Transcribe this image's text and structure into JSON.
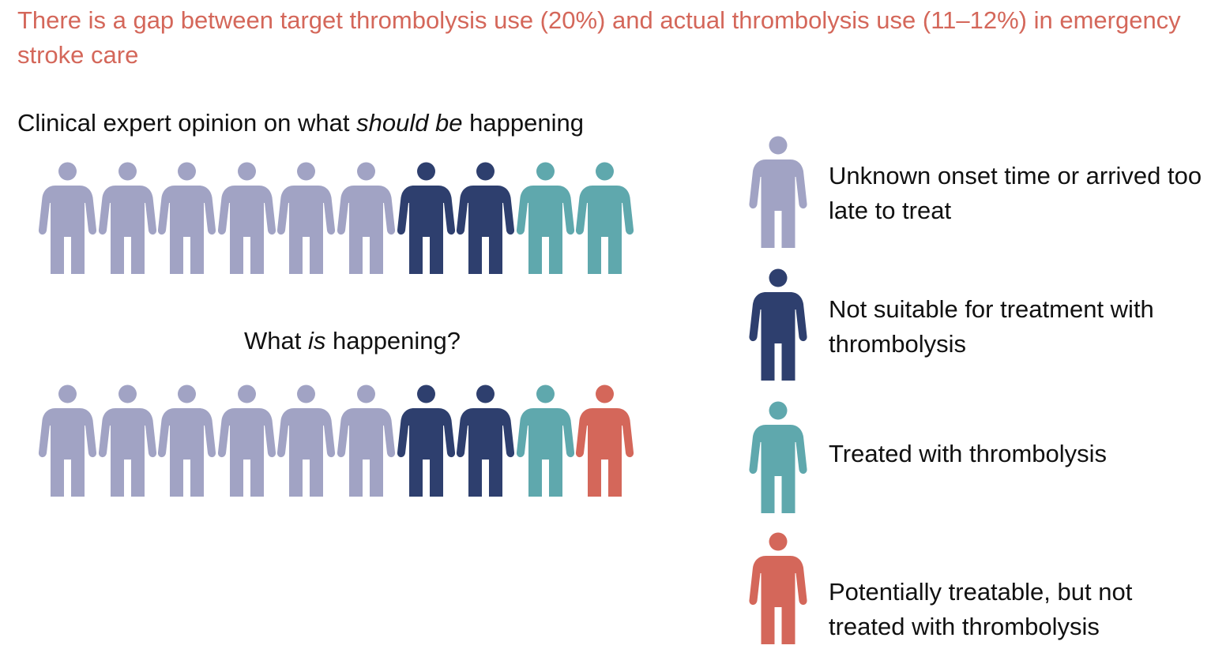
{
  "title": "There is a gap between target thrombolysis use (20%) and actual thrombolysis use (11–12%) in emergency stroke care",
  "expert_heading": {
    "before": "Clinical expert opinion on what ",
    "italic": "should be",
    "after": " happening"
  },
  "actual_heading": {
    "before": "What ",
    "italic": "is",
    "after": " happening?"
  },
  "colors": {
    "unknown_onset": "#a1a3c4",
    "not_suitable": "#2e3f6e",
    "treated": "#5fa8ad",
    "not_treated": "#d4675a"
  },
  "categories": [
    {
      "key": "unknown_onset",
      "label": "Unknown onset time or arrived too late to treat"
    },
    {
      "key": "not_suitable",
      "label": "Not suitable for treatment with thrombolysis"
    },
    {
      "key": "treated",
      "label": "Treated with thrombolysis"
    },
    {
      "key": "not_treated",
      "label": "Potentially treatable, but not treated with thrombolysis"
    }
  ],
  "expert_row": [
    "unknown_onset",
    "unknown_onset",
    "unknown_onset",
    "unknown_onset",
    "unknown_onset",
    "unknown_onset",
    "not_suitable",
    "not_suitable",
    "treated",
    "treated"
  ],
  "actual_row": [
    "unknown_onset",
    "unknown_onset",
    "unknown_onset",
    "unknown_onset",
    "unknown_onset",
    "unknown_onset",
    "not_suitable",
    "not_suitable",
    "treated",
    "not_treated"
  ]
}
